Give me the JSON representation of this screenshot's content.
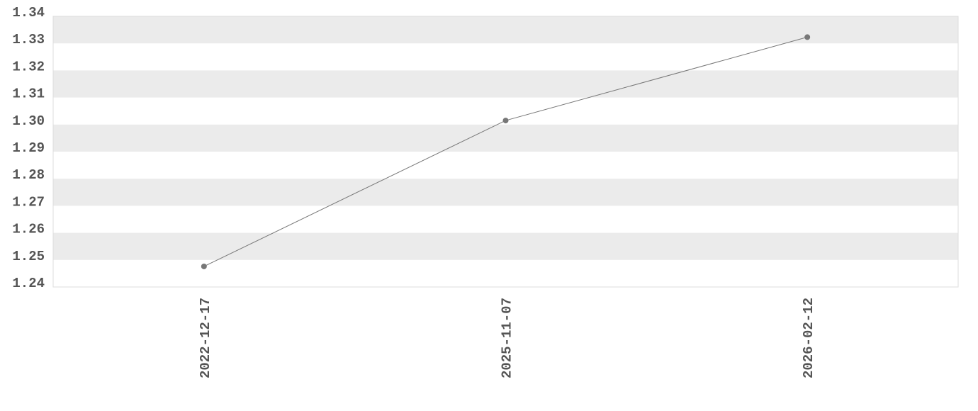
{
  "chart_data": {
    "type": "line",
    "title": "",
    "xlabel": "",
    "ylabel": "",
    "categories": [
      "2022-12-17",
      "2025-11-07",
      "2026-02-12"
    ],
    "series": [
      {
        "values": [
          1.2476,
          1.3015,
          1.3323
        ]
      }
    ],
    "ylim": [
      1.24,
      1.34
    ],
    "yticks": [
      "1.24",
      "1.25",
      "1.26",
      "1.27",
      "1.28",
      "1.29",
      "1.30",
      "1.31",
      "1.32",
      "1.33",
      "1.34"
    ],
    "grid": "alternating horizontal bands",
    "legend": "none",
    "colors": {
      "line": "#777777",
      "marker": "#777777",
      "band": "#ebebeb",
      "border": "#dddddd",
      "text": "#555555"
    }
  }
}
